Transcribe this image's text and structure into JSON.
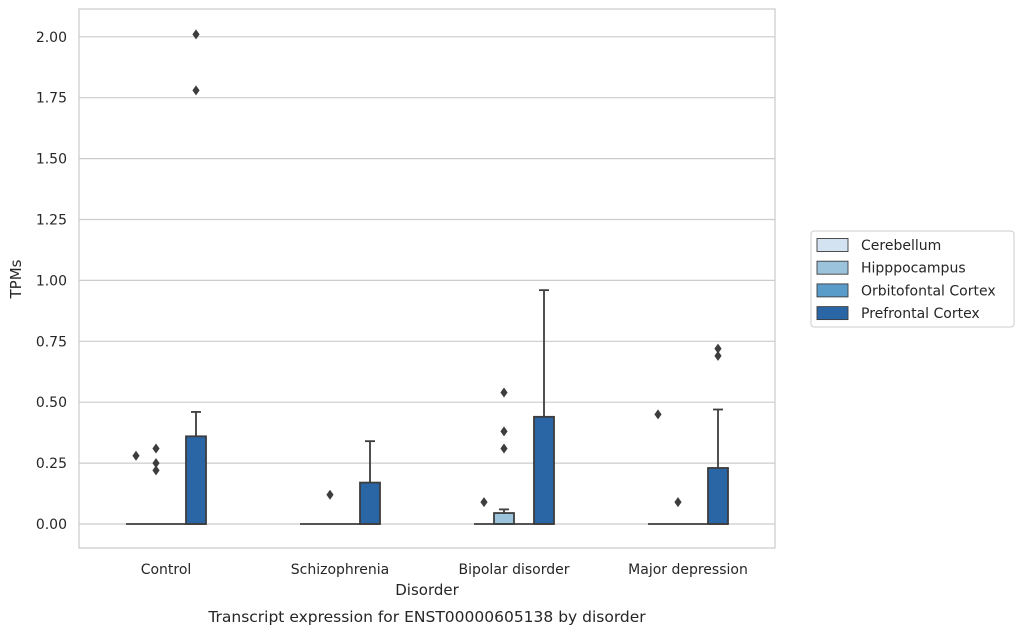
{
  "chart_data": {
    "type": "box",
    "title": "Transcript expression for ENST00000605138 by disorder",
    "xlabel": "Disorder",
    "ylabel": "TPMs",
    "ylim": [
      -0.1,
      2.11
    ],
    "yticks": [
      0.0,
      0.25,
      0.5,
      0.75,
      1.0,
      1.25,
      1.5,
      1.75,
      2.0
    ],
    "ytick_labels": [
      "0.00",
      "0.25",
      "0.50",
      "0.75",
      "1.00",
      "1.25",
      "1.50",
      "1.75",
      "2.00"
    ],
    "grid": "horizontal",
    "legend_position": "right",
    "categories": [
      "Control",
      "Schizophrenia",
      "Bipolar disorder",
      "Major depression"
    ],
    "series": [
      {
        "name": "Cerebellum",
        "color": "#d4e3f1",
        "boxes": [
          {
            "q1": 0,
            "median": 0,
            "q3": 0,
            "whisker_low": 0,
            "whisker_high": 0,
            "outliers": [
              0.28
            ]
          },
          {
            "q1": 0,
            "median": 0,
            "q3": 0,
            "whisker_low": 0,
            "whisker_high": 0,
            "outliers": []
          },
          {
            "q1": 0,
            "median": 0,
            "q3": 0,
            "whisker_low": 0,
            "whisker_high": 0,
            "outliers": [
              0.09
            ]
          },
          {
            "q1": 0,
            "median": 0,
            "q3": 0,
            "whisker_low": 0,
            "whisker_high": 0,
            "outliers": [
              0.45
            ]
          }
        ]
      },
      {
        "name": "Hipppocampus",
        "color": "#9cc3dc",
        "boxes": [
          {
            "q1": 0,
            "median": 0,
            "q3": 0,
            "whisker_low": 0,
            "whisker_high": 0,
            "outliers": [
              0.22,
              0.25,
              0.31
            ]
          },
          {
            "q1": 0,
            "median": 0,
            "q3": 0,
            "whisker_low": 0,
            "whisker_high": 0,
            "outliers": [
              0.12
            ]
          },
          {
            "q1": 0,
            "median": 0,
            "q3": 0.045,
            "whisker_low": 0,
            "whisker_high": 0.06,
            "outliers": [
              0.31,
              0.38,
              0.54
            ]
          },
          {
            "q1": 0,
            "median": 0,
            "q3": 0,
            "whisker_low": 0,
            "whisker_high": 0,
            "outliers": [
              0.09
            ]
          }
        ]
      },
      {
        "name": "Orbitofontal Cortex",
        "color": "#5a9cc9",
        "boxes": [
          {
            "q1": 0,
            "median": 0,
            "q3": 0,
            "whisker_low": 0,
            "whisker_high": 0,
            "outliers": []
          },
          {
            "q1": 0,
            "median": 0,
            "q3": 0,
            "whisker_low": 0,
            "whisker_high": 0,
            "outliers": []
          },
          {
            "q1": 0,
            "median": 0,
            "q3": 0,
            "whisker_low": 0,
            "whisker_high": 0,
            "outliers": []
          },
          {
            "q1": 0,
            "median": 0,
            "q3": 0,
            "whisker_low": 0,
            "whisker_high": 0,
            "outliers": []
          }
        ]
      },
      {
        "name": "Prefrontal Cortex",
        "color": "#2a65a6",
        "boxes": [
          {
            "q1": 0,
            "median": 0,
            "q3": 0.36,
            "whisker_low": 0,
            "whisker_high": 0.46,
            "outliers": [
              1.78,
              2.01
            ]
          },
          {
            "q1": 0,
            "median": 0,
            "q3": 0.17,
            "whisker_low": 0,
            "whisker_high": 0.34,
            "outliers": []
          },
          {
            "q1": 0,
            "median": 0,
            "q3": 0.44,
            "whisker_low": 0,
            "whisker_high": 0.96,
            "outliers": []
          },
          {
            "q1": 0,
            "median": 0,
            "q3": 0.23,
            "whisker_low": 0,
            "whisker_high": 0.47,
            "outliers": [
              0.69,
              0.72
            ]
          }
        ]
      }
    ]
  }
}
